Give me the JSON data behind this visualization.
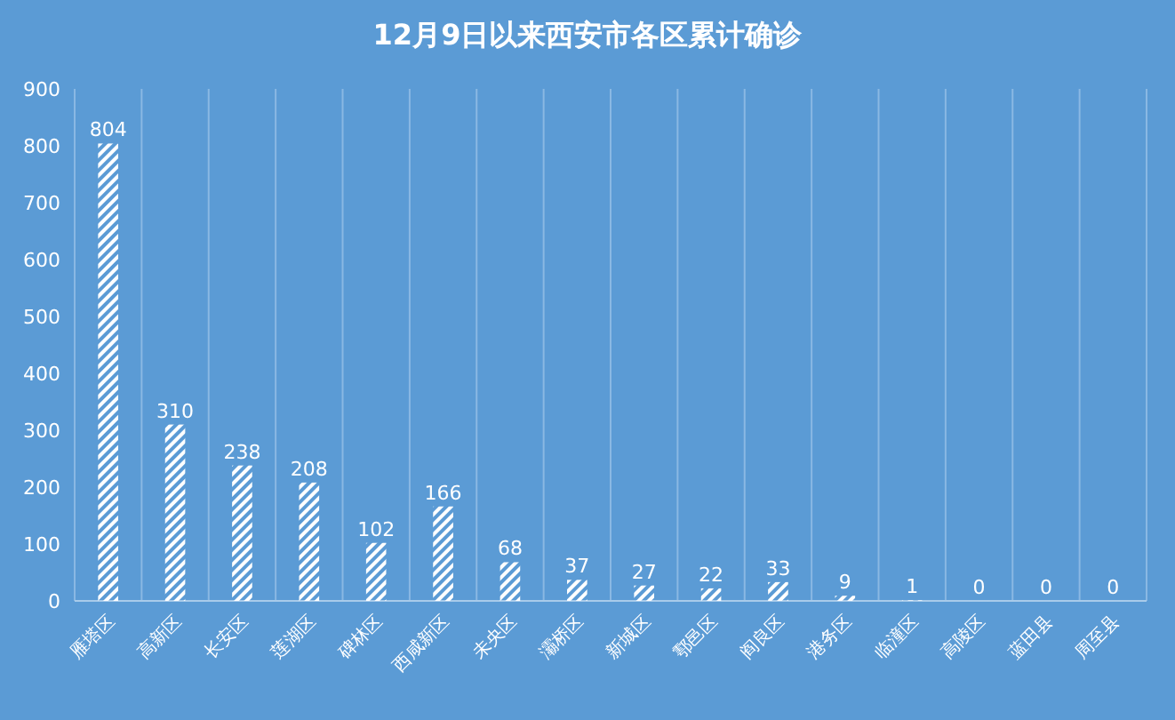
{
  "chart_data": {
    "type": "bar",
    "title": "12月9日以来西安市各区累计确诊",
    "categories": [
      "雁塔区",
      "高新区",
      "长安区",
      "莲湖区",
      "碑林区",
      "西咸新区",
      "未央区",
      "灞桥区",
      "新城区",
      "鄠邑区",
      "阎良区",
      "港务区",
      "临潼区",
      "高陵区",
      "蓝田县",
      "周至县"
    ],
    "values": [
      804,
      310,
      238,
      208,
      102,
      166,
      68,
      37,
      27,
      22,
      33,
      9,
      1,
      0,
      0,
      0
    ],
    "color": "#ffffff",
    "ylim": [
      0,
      900
    ],
    "yticks": [
      0,
      100,
      200,
      300,
      400,
      500,
      600,
      700,
      800,
      900
    ],
    "grid": "x",
    "data_labels": true
  }
}
